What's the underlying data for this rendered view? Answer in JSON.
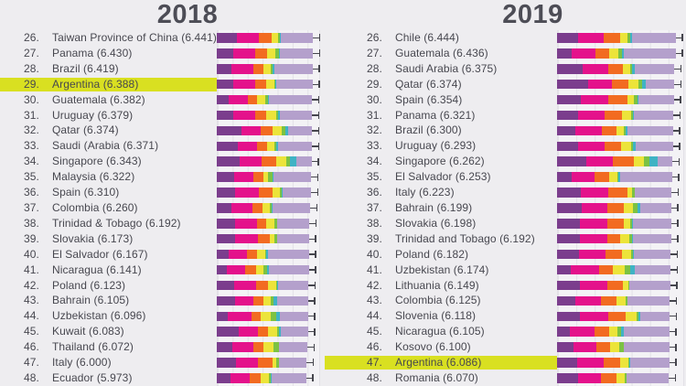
{
  "colors": {
    "background": "#eeedf0",
    "plot_background": "#f3f2f5",
    "gridline": "#e3e1e7",
    "highlight": "#d9e021",
    "text": "#47474f",
    "title": "#4d4d56",
    "whisker": "#45454d",
    "segments": [
      "#7b3d8d",
      "#e4128b",
      "#f26b21",
      "#ece43a",
      "#7cc243",
      "#3fb3c4",
      "#b4a0cc"
    ]
  },
  "segment_color_names": [
    "purple",
    "magenta",
    "orange",
    "yellow",
    "green",
    "teal",
    "lavender"
  ],
  "chart_data": [
    {
      "type": "bar",
      "orientation": "horizontal",
      "stacked": true,
      "grid": true,
      "legend": "none",
      "title": "2018",
      "xlim": [
        0,
        6.9
      ],
      "highlighted_index": 3,
      "ranks": [
        "26.",
        "27.",
        "28.",
        "29.",
        "30.",
        "31.",
        "32.",
        "33.",
        "34.",
        "35.",
        "36.",
        "37.",
        "38.",
        "39.",
        "40.",
        "41.",
        "42.",
        "43.",
        "44.",
        "45.",
        "46.",
        "47.",
        "48."
      ],
      "categories": [
        "Taiwan Province of China (6.441)",
        "Panama (6.430)",
        "Brazil (6.419)",
        "Argentina (6.388)",
        "Guatemala (6.382)",
        "Uruguay (6.379)",
        "Qatar (6.374)",
        "Saudi (Arabia (6.371)",
        "Singapore (6.343)",
        "Malaysia (6.322)",
        "Spain (6.310)",
        "Colombia (6.260)",
        "Trinidad & Tobago (6.192)",
        "Slovakia (6.173)",
        "El Salvador (6.167)",
        "Nicaragua (6.141)",
        "Poland (6.123)",
        "Bahrain (6.105)",
        "Uzbekistan (6.096)",
        "Kuwait (6.083)",
        "Thailand (6.072)",
        "Italy (6.000)",
        "Ecuador (5.973)"
      ],
      "values": [
        6.441,
        6.43,
        6.419,
        6.388,
        6.382,
        6.379,
        6.374,
        6.371,
        6.343,
        6.322,
        6.31,
        6.26,
        6.192,
        6.173,
        6.167,
        6.141,
        6.123,
        6.105,
        6.096,
        6.083,
        6.072,
        6.0,
        5.973
      ],
      "series": [
        {
          "name": "purple",
          "values": [
            1.365,
            1.072,
            0.986,
            1.073,
            0.781,
            1.093,
            1.649,
            1.379,
            1.529,
            1.161,
            1.251,
            0.96,
            1.223,
            1.21,
            0.794,
            0.668,
            1.176,
            1.223,
            0.719,
            1.474,
            1.016,
            1.264,
            0.889
          ]
        },
        {
          "name": "magenta",
          "values": [
            1.436,
            1.51,
            1.474,
            1.468,
            1.269,
            1.459,
            1.303,
            1.331,
            1.451,
            1.258,
            1.538,
            1.439,
            1.492,
            1.537,
            1.242,
            1.245,
            1.448,
            1.215,
            1.584,
            1.301,
            1.417,
            1.501,
            1.323
          ]
        },
        {
          "name": "orange",
          "values": [
            0.857,
            0.776,
            0.675,
            0.744,
            0.608,
            0.771,
            0.748,
            0.633,
            1.008,
            0.669,
            0.965,
            0.635,
            0.564,
            0.776,
            0.652,
            0.7,
            0.781,
            0.657,
            0.605,
            0.675,
            0.707,
            0.946,
            0.724
          ]
        },
        {
          "name": "yellow",
          "values": [
            0.418,
            0.57,
            0.493,
            0.57,
            0.604,
            0.625,
            0.654,
            0.509,
            0.631,
            0.356,
            0.449,
            0.531,
            0.575,
            0.354,
            0.526,
            0.527,
            0.546,
            0.536,
            0.724,
            0.554,
            0.637,
            0.281,
            0.554
          ]
        },
        {
          "name": "green",
          "values": [
            0.151,
            0.206,
            0.11,
            0.062,
            0.179,
            0.13,
            0.256,
            0.098,
            0.261,
            0.31,
            0.142,
            0.099,
            0.171,
            0.153,
            0.1,
            0.208,
            0.108,
            0.172,
            0.328,
            0.167,
            0.364,
            0.137,
            0.111
          ]
        },
        {
          "name": "teal",
          "values": [
            0.078,
            0.078,
            0.088,
            0.054,
            0.071,
            0.155,
            0.171,
            0.132,
            0.457,
            0.024,
            0.074,
            0.034,
            0.019,
            0.021,
            0.082,
            0.128,
            0.064,
            0.257,
            0.259,
            0.106,
            0.029,
            0.028,
            0.093
          ]
        },
        {
          "name": "lavender",
          "values": [
            2.136,
            2.218,
            2.593,
            2.417,
            2.87,
            2.146,
            1.593,
            2.289,
            1.006,
            2.544,
            1.891,
            2.562,
            2.148,
            2.122,
            2.771,
            2.665,
            2.0,
            2.045,
            1.877,
            1.806,
            1.902,
            1.843,
            2.279
          ]
        }
      ]
    },
    {
      "type": "bar",
      "orientation": "horizontal",
      "stacked": true,
      "grid": true,
      "legend": "none",
      "title": "2019",
      "xlim": [
        0,
        6.9
      ],
      "highlighted_index": 21,
      "ranks": [
        "26.",
        "27.",
        "28.",
        "29.",
        "30.",
        "31.",
        "32.",
        "33.",
        "34.",
        "35.",
        "36.",
        "37.",
        "38.",
        "39.",
        "40.",
        "41.",
        "42.",
        "43.",
        "44.",
        "45.",
        "46.",
        "47.",
        "48."
      ],
      "categories": [
        "Chile (6.444)",
        "Guatemala (6.436)",
        "Saudi Arabia (6.375)",
        "Qatar (6.374)",
        "Spain (6.354)",
        "Panama (6.321)",
        "Brazil (6.300)",
        "Uruguay (6.293)",
        "Singapore (6.262)",
        "El Salvador (6.253)",
        "Italy (6.223)",
        "Bahrain (6.199)",
        "Slovakia (6.198)",
        "Trinidad and Tobago (6.192)",
        "Poland (6.182)",
        "Uzbekistan (6.174)",
        "Lithuania (6.149)",
        "Colombia (6.125)",
        "Slovenia (6.118)",
        "Nicaragua (6.105)",
        "Kosovo (6.100)",
        "Argentina (6.086)",
        "Romania (6.070)"
      ],
      "values": [
        6.444,
        6.436,
        6.375,
        6.374,
        6.354,
        6.321,
        6.3,
        6.293,
        6.262,
        6.253,
        6.223,
        6.199,
        6.198,
        6.192,
        6.182,
        6.174,
        6.149,
        6.125,
        6.118,
        6.105,
        6.1,
        6.086,
        6.07
      ],
      "series": [
        {
          "name": "purple",
          "values": [
            1.159,
            0.8,
            1.403,
            1.684,
            1.286,
            1.149,
            1.004,
            1.124,
            1.572,
            0.794,
            1.294,
            1.362,
            1.246,
            1.231,
            1.206,
            0.745,
            1.238,
            0.985,
            1.258,
            0.694,
            0.882,
            1.092,
            1.162
          ]
        },
        {
          "name": "magenta",
          "values": [
            1.369,
            1.269,
            1.357,
            1.313,
            1.484,
            1.442,
            1.439,
            1.465,
            1.463,
            1.242,
            1.488,
            1.368,
            1.504,
            1.477,
            1.438,
            1.529,
            1.515,
            1.41,
            1.523,
            1.325,
            1.232,
            1.432,
            1.232
          ]
        },
        {
          "name": "orange",
          "values": [
            0.92,
            0.746,
            0.795,
            0.871,
            1.062,
            0.91,
            0.802,
            0.891,
            1.141,
            0.789,
            1.039,
            0.871,
            0.881,
            0.713,
            0.884,
            0.756,
            0.818,
            0.841,
            0.953,
            0.835,
            0.758,
            0.881,
            0.825
          ]
        },
        {
          "name": "yellow",
          "values": [
            0.357,
            0.535,
            0.439,
            0.555,
            0.362,
            0.516,
            0.39,
            0.523,
            0.556,
            0.43,
            0.231,
            0.536,
            0.334,
            0.489,
            0.483,
            0.631,
            0.291,
            0.47,
            0.564,
            0.435,
            0.489,
            0.471,
            0.462
          ]
        },
        {
          "name": "green",
          "values": [
            0.187,
            0.175,
            0.08,
            0.22,
            0.153,
            0.109,
            0.099,
            0.127,
            0.271,
            0.093,
            0.158,
            0.255,
            0.121,
            0.185,
            0.117,
            0.322,
            0.043,
            0.099,
            0.144,
            0.2,
            0.262,
            0.066,
            0.083
          ]
        },
        {
          "name": "teal",
          "values": [
            0.056,
            0.078,
            0.132,
            0.167,
            0.079,
            0.054,
            0.086,
            0.15,
            0.453,
            0.074,
            0.03,
            0.11,
            0.014,
            0.016,
            0.05,
            0.24,
            0.042,
            0.034,
            0.057,
            0.127,
            0.006,
            0.05,
            0.005
          ]
        },
        {
          "name": "lavender",
          "values": [
            2.396,
            2.833,
            2.169,
            1.564,
            1.928,
            2.141,
            2.48,
            2.013,
            0.806,
            2.831,
            1.983,
            1.697,
            2.098,
            2.081,
            2.004,
            1.951,
            2.202,
            2.286,
            1.619,
            2.489,
            2.471,
            2.094,
            2.301
          ]
        }
      ]
    }
  ]
}
